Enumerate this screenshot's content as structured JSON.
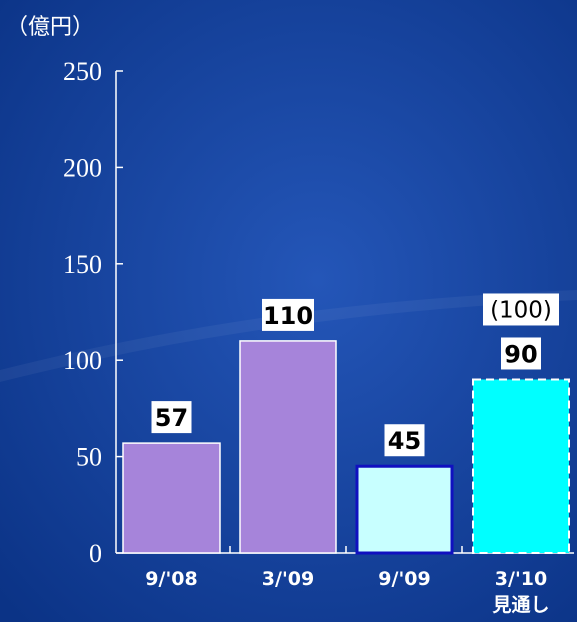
{
  "colors": {
    "background": "#0d3a8f",
    "axis": "#ffffff",
    "bar_actual": "#a684da",
    "bar_interim": "#c8ffff",
    "bar_forecast": "#00ffff",
    "label_box": "#ffffff"
  },
  "chart_data": {
    "type": "bar",
    "title": "",
    "ylabel": "（億円）",
    "xlabel": "",
    "ylim": [
      0,
      250
    ],
    "yticks": [
      "0",
      "50",
      "100",
      "150",
      "200",
      "250"
    ],
    "categories": [
      "9/'08",
      "3/'09",
      "9/'09",
      "3/'10"
    ],
    "category_sublabels": [
      "",
      "",
      "",
      "見通し"
    ],
    "values": [
      57,
      110,
      45,
      90
    ],
    "value_labels": [
      "57",
      "110",
      "45",
      "90"
    ],
    "previous_forecast_label": "(100)",
    "bar_styles": [
      "actual",
      "actual",
      "interim",
      "forecast"
    ],
    "grid": false,
    "legend": "none"
  }
}
